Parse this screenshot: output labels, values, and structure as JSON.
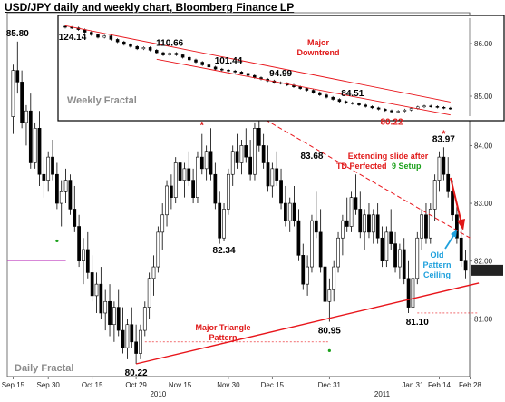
{
  "title": "USD/JPY daily and weekly chart, Bloomberg Finance LP",
  "colors": {
    "bull": "#ffffff",
    "bear": "#000000",
    "trend": "#e8141a",
    "annot_red": "#e01818",
    "annot_blue": "#1ea0dc",
    "setup_green": "#1aa01a"
  },
  "chart_data": [
    {
      "name": "Daily Fractal",
      "type": "candlestick",
      "label": "Daily Fractal",
      "x_ticks": [
        "Sep 15",
        "Sep 30",
        "Oct 15",
        "Oct 29",
        "Nov 15",
        "Nov 30",
        "Dec 15",
        "Dec 31",
        "Jan 31",
        "Feb 14",
        "Feb 28"
      ],
      "year_ticks": [
        "2010",
        "2011"
      ],
      "y_ticks": [
        "81.00",
        "82.00",
        "83.00",
        "84.00",
        "85.00",
        "86.00"
      ],
      "ylim": [
        80.0,
        86.3
      ],
      "last_value_tag": "81.84",
      "ohlc": [
        [
          84.5,
          85.4,
          84.2,
          85.3
        ],
        [
          85.3,
          85.8,
          84.9,
          85.1
        ],
        [
          85.1,
          85.3,
          84.3,
          84.4
        ],
        [
          84.4,
          84.7,
          84.0,
          84.6
        ],
        [
          84.6,
          84.9,
          83.6,
          83.7
        ],
        [
          83.7,
          84.4,
          83.6,
          84.3
        ],
        [
          84.3,
          84.6,
          83.3,
          83.5
        ],
        [
          83.5,
          83.8,
          83.1,
          83.4
        ],
        [
          83.4,
          83.9,
          83.2,
          83.8
        ],
        [
          83.8,
          84.1,
          83.4,
          83.5
        ],
        [
          83.5,
          83.7,
          82.9,
          83.0
        ],
        [
          83.0,
          83.4,
          82.6,
          83.2
        ],
        [
          83.2,
          83.6,
          83.0,
          83.4
        ],
        [
          83.4,
          83.5,
          82.8,
          82.9
        ],
        [
          82.9,
          83.3,
          82.5,
          82.6
        ],
        [
          82.6,
          82.8,
          81.9,
          82.0
        ],
        [
          82.0,
          82.4,
          81.6,
          82.2
        ],
        [
          82.2,
          82.5,
          81.7,
          81.8
        ],
        [
          81.8,
          82.1,
          81.3,
          81.4
        ],
        [
          81.4,
          81.8,
          81.1,
          81.6
        ],
        [
          81.6,
          81.9,
          81.0,
          81.1
        ],
        [
          81.1,
          81.5,
          80.8,
          81.3
        ],
        [
          81.3,
          81.6,
          80.7,
          80.9
        ],
        [
          80.9,
          81.3,
          80.6,
          81.2
        ],
        [
          81.2,
          81.5,
          80.7,
          80.8
        ],
        [
          80.8,
          81.2,
          80.4,
          80.5
        ],
        [
          80.5,
          81.0,
          80.3,
          80.9
        ],
        [
          80.9,
          81.2,
          80.5,
          80.6
        ],
        [
          80.6,
          80.9,
          80.22,
          80.4
        ],
        [
          80.4,
          80.9,
          80.3,
          80.8
        ],
        [
          80.8,
          81.3,
          80.7,
          81.2
        ],
        [
          81.2,
          81.8,
          81.0,
          81.7
        ],
        [
          81.7,
          82.1,
          81.4,
          81.9
        ],
        [
          81.9,
          82.6,
          81.8,
          82.5
        ],
        [
          82.5,
          83.0,
          82.2,
          82.8
        ],
        [
          82.8,
          83.4,
          82.6,
          83.3
        ],
        [
          83.3,
          83.5,
          82.9,
          83.1
        ],
        [
          83.1,
          83.8,
          83.0,
          83.7
        ],
        [
          83.7,
          83.9,
          83.3,
          83.4
        ],
        [
          83.4,
          83.7,
          83.1,
          83.6
        ],
        [
          83.6,
          83.9,
          83.3,
          83.4
        ],
        [
          83.4,
          83.6,
          83.0,
          83.1
        ],
        [
          83.1,
          83.9,
          83.0,
          83.8
        ],
        [
          83.8,
          84.2,
          83.5,
          83.6
        ],
        [
          83.6,
          84.0,
          83.4,
          83.9
        ],
        [
          83.9,
          84.3,
          83.4,
          83.5
        ],
        [
          83.5,
          83.7,
          82.9,
          83.0
        ],
        [
          83.0,
          83.2,
          82.3,
          82.4
        ],
        [
          82.4,
          83.0,
          82.34,
          82.9
        ],
        [
          82.9,
          83.6,
          82.8,
          83.5
        ],
        [
          83.5,
          84.0,
          83.3,
          83.9
        ],
        [
          83.9,
          84.2,
          83.6,
          83.7
        ],
        [
          83.7,
          84.1,
          83.5,
          84.0
        ],
        [
          84.0,
          84.3,
          83.7,
          83.8
        ],
        [
          83.8,
          84.1,
          83.4,
          83.5
        ],
        [
          83.5,
          84.4,
          83.4,
          84.3
        ],
        [
          84.3,
          84.51,
          83.9,
          84.0
        ],
        [
          84.0,
          84.2,
          83.6,
          83.7
        ],
        [
          83.7,
          84.0,
          83.2,
          83.3
        ],
        [
          83.3,
          83.7,
          83.1,
          83.6
        ],
        [
          83.6,
          83.9,
          83.3,
          83.4
        ],
        [
          83.4,
          83.6,
          82.9,
          83.0
        ],
        [
          83.0,
          83.3,
          82.6,
          82.7
        ],
        [
          82.7,
          83.1,
          82.5,
          83.0
        ],
        [
          83.0,
          83.3,
          82.6,
          82.7
        ],
        [
          82.7,
          82.9,
          82.0,
          82.1
        ],
        [
          82.1,
          82.3,
          81.5,
          81.6
        ],
        [
          81.6,
          82.1,
          81.4,
          81.9
        ],
        [
          81.9,
          82.8,
          81.8,
          82.7
        ],
        [
          82.7,
          83.2,
          82.4,
          82.5
        ],
        [
          82.5,
          82.9,
          81.8,
          81.9
        ],
        [
          81.9,
          82.1,
          81.2,
          81.3
        ],
        [
          81.3,
          81.7,
          80.95,
          81.5
        ],
        [
          81.5,
          82.0,
          81.3,
          81.9
        ],
        [
          81.9,
          82.5,
          81.8,
          82.4
        ],
        [
          82.4,
          82.8,
          82.1,
          82.7
        ],
        [
          82.7,
          83.1,
          82.5,
          82.6
        ],
        [
          82.6,
          83.2,
          82.5,
          83.1
        ],
        [
          83.1,
          83.5,
          82.8,
          82.9
        ],
        [
          82.9,
          83.2,
          82.4,
          82.5
        ],
        [
          82.5,
          82.9,
          82.2,
          82.8
        ],
        [
          82.8,
          83.0,
          82.4,
          82.5
        ],
        [
          82.5,
          82.9,
          82.3,
          82.8
        ],
        [
          82.8,
          83.0,
          82.3,
          82.4
        ],
        [
          82.4,
          82.6,
          81.9,
          82.0
        ],
        [
          82.0,
          82.6,
          81.9,
          82.5
        ],
        [
          82.5,
          82.9,
          82.2,
          82.3
        ],
        [
          82.3,
          82.5,
          81.8,
          81.9
        ],
        [
          81.9,
          82.3,
          81.7,
          82.2
        ],
        [
          82.2,
          82.4,
          81.6,
          81.7
        ],
        [
          81.7,
          82.0,
          81.1,
          81.2
        ],
        [
          81.2,
          81.8,
          81.1,
          81.7
        ],
        [
          81.7,
          82.5,
          81.6,
          82.4
        ],
        [
          82.4,
          82.9,
          82.2,
          82.8
        ],
        [
          82.8,
          83.0,
          82.3,
          82.4
        ],
        [
          82.4,
          83.0,
          82.3,
          82.9
        ],
        [
          82.9,
          83.5,
          82.7,
          83.4
        ],
        [
          83.4,
          83.9,
          83.2,
          83.8
        ],
        [
          83.8,
          83.97,
          83.4,
          83.5
        ],
        [
          83.5,
          83.8,
          83.1,
          83.2
        ],
        [
          83.2,
          83.4,
          82.7,
          82.8
        ],
        [
          82.8,
          83.0,
          82.3,
          82.4
        ],
        [
          82.4,
          82.6,
          81.9,
          82.0
        ],
        [
          82.0,
          82.2,
          81.7,
          81.84
        ]
      ],
      "trendlines": [
        {
          "from": [
            28,
            80.22
          ],
          "to": [
            106,
            81.62
          ],
          "label": "Major Triangle Pattern"
        },
        {
          "from": [
            56,
            84.51
          ],
          "to": [
            104,
            82.4
          ]
        }
      ],
      "annotations": [
        {
          "text": "85.80",
          "x": 1,
          "y": 85.8
        },
        {
          "text": "84.51",
          "x": 56,
          "y": 84.51
        },
        {
          "text": "83.68",
          "x": 68,
          "y": 83.68
        },
        {
          "text": "82.34",
          "x": 48,
          "y": 82.34
        },
        {
          "text": "81.10",
          "x": 92,
          "y": 81.1
        },
        {
          "text": "80.95",
          "x": 72,
          "y": 80.95
        },
        {
          "text": "80.22",
          "x": 28,
          "y": 80.22
        },
        {
          "text": "83.97",
          "x": 98,
          "y": 83.97
        },
        {
          "text": "Extending slide after",
          "color": "red"
        },
        {
          "text": "TD Perfected",
          "color": "red"
        },
        {
          "text": "9 Setup",
          "color": "green"
        },
        {
          "text": "Old",
          "color": "blue"
        },
        {
          "text": "Pattern",
          "color": "blue"
        },
        {
          "text": "Ceiling",
          "color": "blue"
        },
        {
          "text": "Major Triangle",
          "color": "red"
        },
        {
          "text": "Pattern",
          "color": "red"
        }
      ]
    },
    {
      "name": "Weekly Fractal",
      "type": "candlestick",
      "label": "Weekly Fractal",
      "y_ticks": [
        "85.00",
        "86.00"
      ],
      "values_close": [
        124.1,
        123.8,
        122.9,
        121.5,
        120.2,
        118.9,
        119.6,
        117.8,
        116.5,
        115.2,
        114.1,
        112.9,
        113.6,
        112.2,
        110.9,
        109.7,
        110.66,
        109.8,
        108.5,
        107.2,
        106.0,
        104.6,
        103.5,
        102.4,
        101.9,
        101.44,
        100.9,
        100.2,
        99.1,
        98.0,
        97.2,
        96.3,
        95.4,
        94.99,
        94.1,
        93.2,
        92.3,
        91.4,
        90.2,
        89.0,
        87.8,
        86.7,
        85.6,
        84.9,
        84.51,
        83.8,
        83.0,
        82.3,
        81.6,
        80.9,
        80.22,
        80.6,
        81.2,
        82.0,
        82.8,
        83.3,
        83.0,
        82.6,
        82.2,
        81.9
      ],
      "peaks": [
        "124.14",
        "110.66",
        "101.44",
        "94.99",
        "84.51",
        "80.22"
      ],
      "annotations": [
        "Major",
        "Downtrend"
      ]
    }
  ]
}
